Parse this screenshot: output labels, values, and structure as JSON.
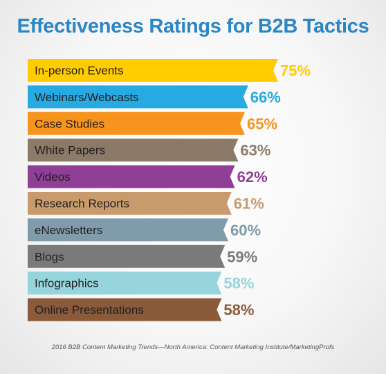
{
  "chart_data": {
    "type": "bar",
    "title": "Effectiveness Ratings for B2B Tactics",
    "orientation": "horizontal",
    "categories": [
      "In-person Events",
      "Webinars/Webcasts",
      "Case Studies",
      "White Papers",
      "Videos",
      "Research Reports",
      "eNewsletters",
      "Blogs",
      "Infographics",
      "Online Presentations"
    ],
    "values": [
      75,
      66,
      65,
      63,
      62,
      61,
      60,
      59,
      58,
      58
    ],
    "value_labels": [
      "75%",
      "66%",
      "65%",
      "63%",
      "62%",
      "61%",
      "60%",
      "59%",
      "58%",
      "58%"
    ],
    "colors": [
      "#ffcc00",
      "#27aae1",
      "#f7941d",
      "#8c7a68",
      "#903f97",
      "#c89b6c",
      "#7f9bac",
      "#7a7a7a",
      "#95d5db",
      "#8a5a3a"
    ],
    "label_text_color": "#231f20",
    "xlim": [
      0,
      75
    ],
    "source": "2016 B2B Content Marketing Trends—North America: Content Marketing Institute/MarketingProfs"
  }
}
